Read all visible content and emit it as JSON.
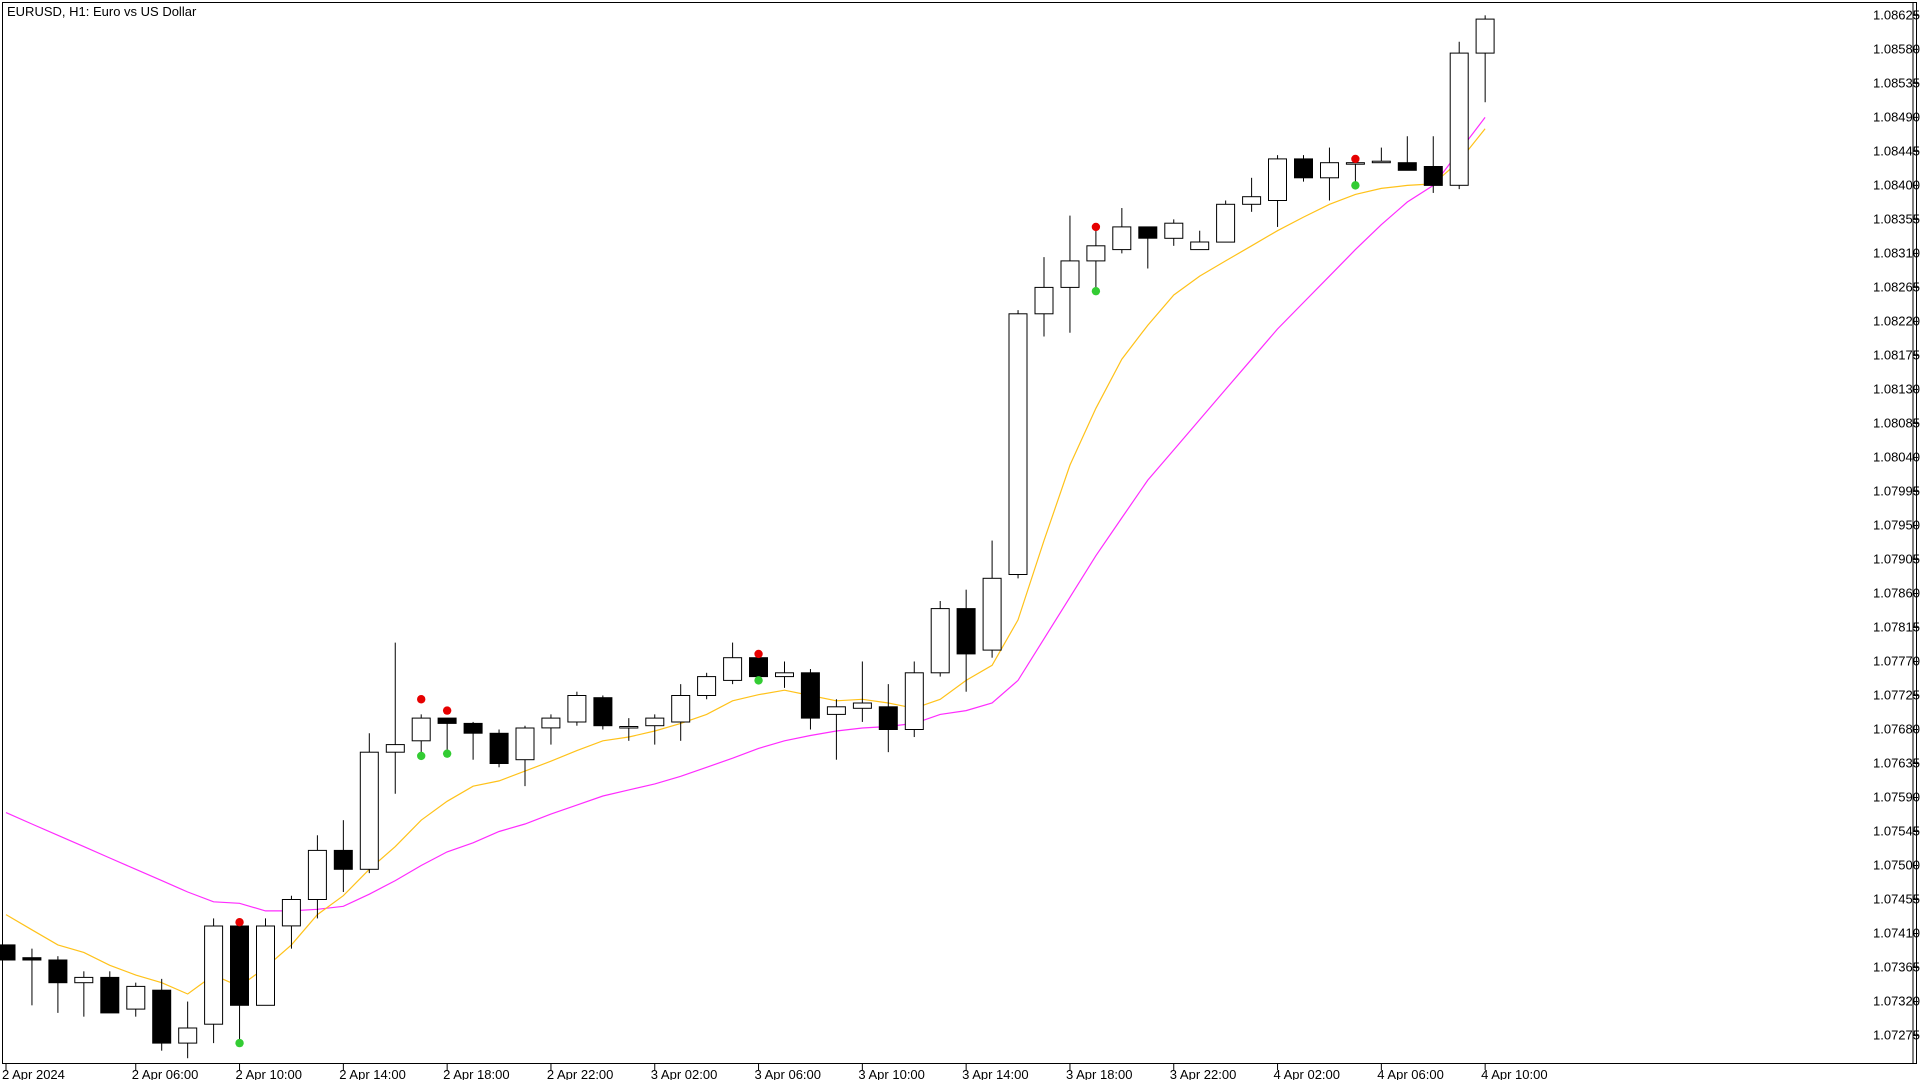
{
  "window": {
    "title": "EURUSD, H1:  Euro vs US Dollar"
  },
  "colors": {
    "background": "#ffffff",
    "bull_body": "#ffffff",
    "bear_body": "#000000",
    "wick": "#000000",
    "ma_fast": "#ffc21a",
    "ma_slow": "#ff2cff",
    "signal_high": "#e60000",
    "signal_low": "#33cc33"
  },
  "chart_data": {
    "type": "candlestick",
    "symbol": "EURUSD",
    "timeframe": "H1",
    "title": "EURUSD, H1:  Euro vs US Dollar",
    "ylim": [
      1.0724,
      1.0864
    ],
    "y_ticks": [
      "1.08625",
      "1.08580",
      "1.08535",
      "1.08490",
      "1.08445",
      "1.08400",
      "1.08355",
      "1.08310",
      "1.08265",
      "1.08220",
      "1.08175",
      "1.08130",
      "1.08085",
      "1.08040",
      "1.07995",
      "1.07950",
      "1.07905",
      "1.07860",
      "1.07815",
      "1.07770",
      "1.07725",
      "1.07680",
      "1.07635",
      "1.07590",
      "1.07545",
      "1.07500",
      "1.07455",
      "1.07410",
      "1.07365",
      "1.07320",
      "1.07275"
    ],
    "x_ticks": [
      {
        "label": "2 Apr 2024",
        "index": 0
      },
      {
        "label": "2 Apr 06:00",
        "index": 5
      },
      {
        "label": "2 Apr 10:00",
        "index": 9
      },
      {
        "label": "2 Apr 14:00",
        "index": 13
      },
      {
        "label": "2 Apr 18:00",
        "index": 17
      },
      {
        "label": "2 Apr 22:00",
        "index": 21
      },
      {
        "label": "3 Apr 02:00",
        "index": 25
      },
      {
        "label": "3 Apr 06:00",
        "index": 29
      },
      {
        "label": "3 Apr 10:00",
        "index": 33
      },
      {
        "label": "3 Apr 14:00",
        "index": 37
      },
      {
        "label": "3 Apr 18:00",
        "index": 41
      },
      {
        "label": "3 Apr 22:00",
        "index": 45
      },
      {
        "label": "4 Apr 02:00",
        "index": 49
      },
      {
        "label": "4 Apr 06:00",
        "index": 53
      },
      {
        "label": "4 Apr 10:00",
        "index": 57
      }
    ],
    "candles": [
      {
        "o": 1.07395,
        "h": 1.07395,
        "l": 1.07375,
        "c": 1.07375
      },
      {
        "o": 1.07378,
        "h": 1.0739,
        "l": 1.07315,
        "c": 1.07375
      },
      {
        "o": 1.07375,
        "h": 1.0738,
        "l": 1.07305,
        "c": 1.07345
      },
      {
        "o": 1.07345,
        "h": 1.0736,
        "l": 1.073,
        "c": 1.07352
      },
      {
        "o": 1.07352,
        "h": 1.0736,
        "l": 1.07305,
        "c": 1.07305
      },
      {
        "o": 1.0731,
        "h": 1.07345,
        "l": 1.073,
        "c": 1.0734
      },
      {
        "o": 1.07335,
        "h": 1.0735,
        "l": 1.07255,
        "c": 1.07265
      },
      {
        "o": 1.07265,
        "h": 1.0732,
        "l": 1.07245,
        "c": 1.07285
      },
      {
        "o": 1.0729,
        "h": 1.0743,
        "l": 1.07265,
        "c": 1.0742
      },
      {
        "o": 1.0742,
        "h": 1.0743,
        "l": 1.07265,
        "c": 1.07315
      },
      {
        "o": 1.07315,
        "h": 1.0743,
        "l": 1.07315,
        "c": 1.0742
      },
      {
        "o": 1.0742,
        "h": 1.0746,
        "l": 1.0739,
        "c": 1.07455
      },
      {
        "o": 1.07455,
        "h": 1.0754,
        "l": 1.0743,
        "c": 1.0752
      },
      {
        "o": 1.0752,
        "h": 1.0756,
        "l": 1.07465,
        "c": 1.07495
      },
      {
        "o": 1.07495,
        "h": 1.07675,
        "l": 1.0749,
        "c": 1.0765
      },
      {
        "o": 1.0765,
        "h": 1.07795,
        "l": 1.07595,
        "c": 1.0766
      },
      {
        "o": 1.07665,
        "h": 1.077,
        "l": 1.0765,
        "c": 1.07695
      },
      {
        "o": 1.07695,
        "h": 1.07695,
        "l": 1.0765,
        "c": 1.07688
      },
      {
        "o": 1.07688,
        "h": 1.0769,
        "l": 1.0764,
        "c": 1.07675
      },
      {
        "o": 1.07675,
        "h": 1.0768,
        "l": 1.0763,
        "c": 1.07635
      },
      {
        "o": 1.0764,
        "h": 1.07685,
        "l": 1.07605,
        "c": 1.07682
      },
      {
        "o": 1.07682,
        "h": 1.077,
        "l": 1.0766,
        "c": 1.07695
      },
      {
        "o": 1.0769,
        "h": 1.0773,
        "l": 1.07685,
        "c": 1.07725
      },
      {
        "o": 1.07722,
        "h": 1.07725,
        "l": 1.0768,
        "c": 1.07685
      },
      {
        "o": 1.07682,
        "h": 1.07695,
        "l": 1.07665,
        "c": 1.07684
      },
      {
        "o": 1.07685,
        "h": 1.077,
        "l": 1.0766,
        "c": 1.07695
      },
      {
        "o": 1.0769,
        "h": 1.0774,
        "l": 1.07665,
        "c": 1.07725
      },
      {
        "o": 1.07725,
        "h": 1.07755,
        "l": 1.0772,
        "c": 1.0775
      },
      {
        "o": 1.07745,
        "h": 1.07795,
        "l": 1.0774,
        "c": 1.07775
      },
      {
        "o": 1.07775,
        "h": 1.0778,
        "l": 1.07745,
        "c": 1.0775
      },
      {
        "o": 1.0775,
        "h": 1.0777,
        "l": 1.07735,
        "c": 1.07755
      },
      {
        "o": 1.07755,
        "h": 1.0776,
        "l": 1.0768,
        "c": 1.07695
      },
      {
        "o": 1.077,
        "h": 1.0772,
        "l": 1.0764,
        "c": 1.0771
      },
      {
        "o": 1.07708,
        "h": 1.0777,
        "l": 1.0769,
        "c": 1.07715
      },
      {
        "o": 1.0771,
        "h": 1.0774,
        "l": 1.0765,
        "c": 1.0768
      },
      {
        "o": 1.0768,
        "h": 1.0777,
        "l": 1.0767,
        "c": 1.07755
      },
      {
        "o": 1.07755,
        "h": 1.0785,
        "l": 1.0775,
        "c": 1.0784
      },
      {
        "o": 1.0784,
        "h": 1.07865,
        "l": 1.0773,
        "c": 1.0778
      },
      {
        "o": 1.07785,
        "h": 1.0793,
        "l": 1.07775,
        "c": 1.0788
      },
      {
        "o": 1.07885,
        "h": 1.08235,
        "l": 1.0788,
        "c": 1.0823
      },
      {
        "o": 1.0823,
        "h": 1.08305,
        "l": 1.082,
        "c": 1.08265
      },
      {
        "o": 1.08265,
        "h": 1.0836,
        "l": 1.08205,
        "c": 1.083
      },
      {
        "o": 1.083,
        "h": 1.0834,
        "l": 1.08265,
        "c": 1.0832
      },
      {
        "o": 1.08315,
        "h": 1.0837,
        "l": 1.0831,
        "c": 1.08345
      },
      {
        "o": 1.08345,
        "h": 1.08345,
        "l": 1.0829,
        "c": 1.0833
      },
      {
        "o": 1.0833,
        "h": 1.08355,
        "l": 1.0832,
        "c": 1.0835
      },
      {
        "o": 1.08315,
        "h": 1.0834,
        "l": 1.08315,
        "c": 1.08325
      },
      {
        "o": 1.08325,
        "h": 1.0838,
        "l": 1.08325,
        "c": 1.08375
      },
      {
        "o": 1.08375,
        "h": 1.0841,
        "l": 1.08365,
        "c": 1.08385
      },
      {
        "o": 1.0838,
        "h": 1.0844,
        "l": 1.08345,
        "c": 1.08435
      },
      {
        "o": 1.08435,
        "h": 1.0844,
        "l": 1.08405,
        "c": 1.0841
      },
      {
        "o": 1.0841,
        "h": 1.0845,
        "l": 1.0838,
        "c": 1.0843
      },
      {
        "o": 1.0843,
        "h": 1.0844,
        "l": 1.08405,
        "c": 1.0843
      },
      {
        "o": 1.0843,
        "h": 1.0845,
        "l": 1.0843,
        "c": 1.08432
      },
      {
        "o": 1.0843,
        "h": 1.08465,
        "l": 1.0842,
        "c": 1.0842
      },
      {
        "o": 1.08425,
        "h": 1.08465,
        "l": 1.0839,
        "c": 1.084
      },
      {
        "o": 1.084,
        "h": 1.0859,
        "l": 1.08395,
        "c": 1.08575
      },
      {
        "o": 1.08575,
        "h": 1.08625,
        "l": 1.0851,
        "c": 1.0862
      }
    ],
    "ma_fast_values": [
      1.07435,
      1.07415,
      1.07395,
      1.07385,
      1.07368,
      1.07355,
      1.07345,
      1.0733,
      1.07355,
      1.0734,
      1.07365,
      1.07395,
      1.07435,
      1.0746,
      1.07495,
      1.07525,
      1.0756,
      1.07585,
      1.07605,
      1.07612,
      1.07625,
      1.07638,
      1.07652,
      1.07665,
      1.0767,
      1.07678,
      1.07688,
      1.077,
      1.07718,
      1.07726,
      1.07732,
      1.07725,
      1.07718,
      1.0772,
      1.07715,
      1.07708,
      1.0772,
      1.07745,
      1.07765,
      1.07825,
      1.0793,
      1.0803,
      1.08105,
      1.0817,
      1.08215,
      1.08255,
      1.0828,
      1.083,
      1.0832,
      1.0834,
      1.08358,
      1.08375,
      1.08388,
      1.08396,
      1.084,
      1.08402,
      1.08432,
      1.08475
    ],
    "ma_slow_values": [
      1.0757,
      1.07555,
      1.0754,
      1.07525,
      1.0751,
      1.07495,
      1.0748,
      1.07465,
      1.07452,
      1.0745,
      1.0744,
      1.0744,
      1.07442,
      1.07446,
      1.07462,
      1.0748,
      1.075,
      1.07518,
      1.0753,
      1.07545,
      1.07555,
      1.07568,
      1.0758,
      1.07592,
      1.076,
      1.07608,
      1.07618,
      1.0763,
      1.07642,
      1.07655,
      1.07665,
      1.07672,
      1.07678,
      1.07682,
      1.07684,
      1.07688,
      1.077,
      1.07705,
      1.07715,
      1.07745,
      1.078,
      1.07855,
      1.0791,
      1.0796,
      1.0801,
      1.0805,
      1.0809,
      1.0813,
      1.0817,
      1.0821,
      1.08245,
      1.0828,
      1.08315,
      1.08348,
      1.08378,
      1.084,
      1.08445,
      1.0849
    ],
    "signals": [
      {
        "index": 9,
        "high": 1.07425,
        "low": 1.07265
      },
      {
        "index": 16,
        "high": 1.0772,
        "low": 1.07645
      },
      {
        "index": 17,
        "high": 1.07705,
        "low": 1.07648
      },
      {
        "index": 29,
        "high": 1.0778,
        "low": 1.07745
      },
      {
        "index": 42,
        "high": 1.08345,
        "low": 1.0826
      },
      {
        "index": 52,
        "high": 1.08435,
        "low": 1.084
      }
    ],
    "grid": false
  }
}
